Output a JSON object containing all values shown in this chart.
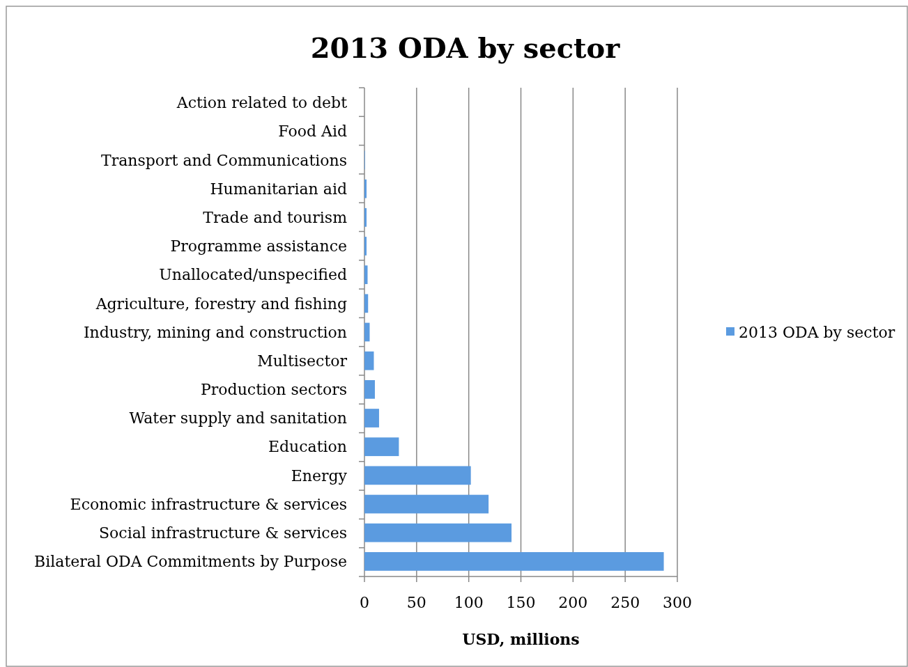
{
  "chart_data": {
    "type": "bar",
    "orientation": "horizontal",
    "title": "2013 ODA by sector",
    "xlabel": "USD, millions",
    "categories": [
      "Action related to debt",
      "Food Aid",
      "Transport and Communications",
      "Humanitarian aid",
      "Trade and tourism",
      "Programme assistance",
      "Unallocated/unspecified",
      "Agriculture, forestry and fishing",
      "Industry, mining and construction",
      "Multisector",
      "Production sectors",
      "Water supply and sanitation",
      "Education",
      "Energy",
      "Economic infrastructure & services",
      "Social infrastructure & services",
      "Bilateral ODA Commitments by Purpose"
    ],
    "series": [
      {
        "name": "2013 ODA by sector",
        "color": "#5b9be0",
        "values": [
          0,
          0,
          0.5,
          2,
          2,
          2,
          3,
          3.5,
          5,
          9,
          10,
          14,
          33,
          102,
          119,
          141,
          287
        ]
      }
    ],
    "xlim": [
      0,
      300
    ],
    "xticks": [
      0,
      50,
      100,
      150,
      200,
      250,
      300
    ],
    "grid": "x",
    "legend": "right"
  }
}
